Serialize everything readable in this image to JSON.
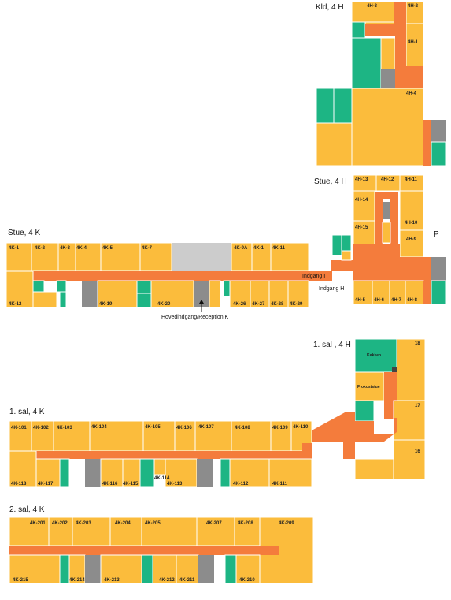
{
  "sections": {
    "kld_4h": "Kld, 4 H",
    "stue_4h": "Stue, 4 H",
    "stue_4k": "Stue, 4 K",
    "sal1_4h": "1. sal , 4 H",
    "sal1_4k": "1. sal, 4 K",
    "sal2_4k": "2. sal, 4 K"
  },
  "annotations": {
    "indgang_i": "Indgang I",
    "indgang_h": "Indgang H",
    "hovedindgang": "Hovedindgang/Reception K",
    "p": "P",
    "kokken": "Køkken",
    "frokoststue": "Frokoststue"
  },
  "rooms": {
    "kld_4h": [
      "4H-3",
      "4H-2",
      "4H-1",
      "4H-4"
    ],
    "stue_4h": [
      "4H-13",
      "4H-12",
      "4H-11",
      "4H-14",
      "4H-10",
      "4H-15",
      "4H-9",
      "4H-5",
      "4H-6",
      "4H-7",
      "4H-8"
    ],
    "stue_4k_top": [
      "4K-1",
      "4K-2",
      "4K-3",
      "4K-4",
      "4K-5",
      "4K-7",
      "4K-9A",
      "4K-1",
      "4K-11"
    ],
    "stue_4k_bottom": [
      "4K-12",
      "4K-19",
      "4K-20",
      "4K-26",
      "4K-27",
      "4K-28",
      "4K-29"
    ],
    "sal1_4h": [
      "18",
      "17",
      "16"
    ],
    "sal1_4k_top": [
      "4K-101",
      "4K-102",
      "4K-103",
      "4K-104",
      "4K-105",
      "4K-106",
      "4K-107",
      "4K-108",
      "4K-109",
      "4K-110"
    ],
    "sal1_4k_bottom": [
      "4K-118",
      "4K-117",
      "4K-116",
      "4K-115",
      "4K-114",
      "4K-113",
      "4K-112",
      "4K-111"
    ],
    "sal2_4k_top": [
      "4K-201",
      "4K-202",
      "4K-203",
      "4K-204",
      "4K-205",
      "4K-207",
      "4K-208",
      "4K-209"
    ],
    "sal2_4k_bottom": [
      "4K-215",
      "4K-214",
      "4K-213",
      "4K-212",
      "4K-211",
      "4K-210"
    ]
  },
  "colors": {
    "room": "#fbbc3c",
    "corridor": "#f47c3c",
    "green": "#1db584",
    "grey": "#8c8c8c",
    "light_grey": "#cccccc"
  }
}
